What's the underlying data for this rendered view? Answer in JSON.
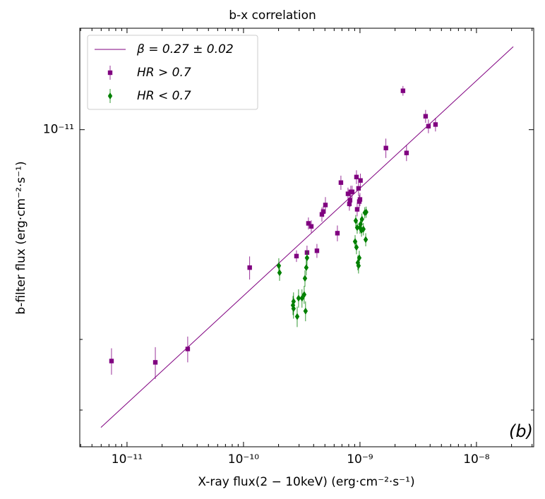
{
  "chart_data": {
    "type": "scatter",
    "title": "b-x correlation",
    "x_label": "X-ray flux(2 − 10keV) (erg·cm⁻²·s⁻¹)",
    "y_label": "b-filter flux (erg·cm⁻²·s⁻¹)",
    "annotation": "(b)",
    "annotation_color": "#ff0000",
    "xscale": "log",
    "yscale": "log",
    "xlim": [
      3.93e-12,
      3.1e-08
    ],
    "ylim": [
      1.62e-12,
      1.79e-11
    ],
    "xticks": [
      {
        "value": 1e-11,
        "label": "10⁻¹¹"
      },
      {
        "value": 1e-10,
        "label": "10⁻¹⁰"
      },
      {
        "value": 1e-09,
        "label": "10⁻⁹"
      },
      {
        "value": 1e-08,
        "label": "10⁻⁸"
      }
    ],
    "yticks": [
      {
        "value": 1e-11,
        "label": "10⁻¹¹"
      }
    ],
    "xminorticks": [
      4e-12,
      5e-12,
      6e-12,
      7e-12,
      8e-12,
      9e-12,
      2e-11,
      3e-11,
      4e-11,
      5e-11,
      6e-11,
      7e-11,
      8e-11,
      9e-11,
      2e-10,
      3e-10,
      4e-10,
      5e-10,
      6e-10,
      7e-10,
      8e-10,
      9e-10,
      2e-09,
      3e-09,
      4e-09,
      5e-09,
      6e-09,
      7e-09,
      8e-09,
      9e-09,
      2e-08,
      3e-08
    ],
    "yminorticks": [
      2e-12,
      3e-12
    ],
    "legend": "upper left",
    "series": [
      {
        "name": "β = 0.27 ± 0.02",
        "style": "line",
        "color": "#800080",
        "x": [
          5.97e-12,
          2.07e-08
        ],
        "y": [
          1.81e-12,
          1.61e-11
        ]
      },
      {
        "name": "HR > 0.7",
        "style": "errorbar",
        "marker": "square",
        "color": "#800080",
        "x": [
          7.36e-12,
          1.75e-11,
          3.32e-11,
          1.13e-10,
          2.85e-10,
          3.51e-10,
          3.61e-10,
          3.82e-10,
          4.27e-10,
          4.71e-10,
          4.84e-10,
          5.05e-10,
          6.4e-10,
          6.86e-10,
          7.89e-10,
          8.11e-10,
          8.22e-10,
          8.34e-10,
          8.57e-10,
          9.33e-10,
          9.46e-10,
          9.72e-10,
          9.86e-10,
          1e-09,
          1.01e-09,
          1.67e-09,
          2.34e-09,
          2.51e-09,
          3.66e-09,
          3.87e-09,
          4.45e-09
        ],
        "y": [
          2.65e-12,
          2.63e-12,
          2.84e-12,
          4.53e-12,
          4.84e-12,
          4.94e-12,
          5.84e-12,
          5.74e-12,
          4.99e-12,
          6.15e-12,
          6.25e-12,
          6.49e-12,
          5.52e-12,
          7.38e-12,
          6.92e-12,
          6.53e-12,
          6.67e-12,
          7e-12,
          7e-12,
          7.62e-12,
          6.33e-12,
          7.14e-12,
          6.62e-12,
          6.7e-12,
          7.47e-12,
          9e-12,
          1.25e-11,
          8.75e-12,
          1.08e-11,
          1.02e-11,
          1.03e-11
        ],
        "errors": [
          2e-13,
          2.4e-13,
          2.1e-13,
          3e-13,
          1.6e-13,
          2e-13,
          2e-13,
          2e-13,
          2e-13,
          2.5e-13,
          2e-13,
          3e-13,
          2.5e-13,
          3e-13,
          2.5e-13,
          2.5e-13,
          2.5e-13,
          2.5e-13,
          2.5e-13,
          3e-13,
          2.5e-13,
          3e-13,
          2.5e-13,
          2.5e-13,
          3e-13,
          5e-13,
          3.5e-13,
          4e-13,
          4e-13,
          4e-13,
          4e-13
        ]
      },
      {
        "name": "HR < 0.7",
        "style": "errorbar",
        "marker": "diamond",
        "color": "#008000",
        "x": [
          2.01e-10,
          2.04e-10,
          2.66e-10,
          2.69e-10,
          2.69e-10,
          2.89e-10,
          2.97e-10,
          3.18e-10,
          3.32e-10,
          3.37e-10,
          3.41e-10,
          3.46e-10,
          3.51e-10,
          9.08e-10,
          9.2e-10,
          9.33e-10,
          9.46e-10,
          9.59e-10,
          9.72e-10,
          9.86e-10,
          1e-09,
          1.01e-09,
          1.03e-09,
          1.04e-09,
          1.07e-09,
          1.1e-09,
          1.12e-09,
          1.13e-09
        ],
        "y": [
          4.58e-12,
          4.4e-12,
          3.65e-12,
          3.73e-12,
          3.58e-12,
          3.42e-12,
          3.8e-12,
          3.8e-12,
          3.88e-12,
          4.26e-12,
          3.53e-12,
          4.53e-12,
          4.79e-12,
          5.26e-12,
          5.93e-12,
          5.09e-12,
          5.7e-12,
          4.66e-12,
          4.58e-12,
          4.79e-12,
          5.7e-12,
          5.81e-12,
          5.61e-12,
          5.98e-12,
          5.65e-12,
          6.21e-12,
          5.32e-12,
          6.23e-12
        ],
        "errors": [
          2e-13,
          2e-13,
          2e-13,
          2e-13,
          2e-13,
          2e-13,
          2e-13,
          2e-13,
          2e-13,
          2e-13,
          2e-13,
          2e-13,
          2e-13,
          2e-13,
          2e-13,
          2e-13,
          2e-13,
          2e-13,
          2e-13,
          2e-13,
          2e-13,
          2e-13,
          2e-13,
          2e-13,
          2e-13,
          2e-13,
          2e-13,
          2e-13
        ]
      }
    ]
  }
}
